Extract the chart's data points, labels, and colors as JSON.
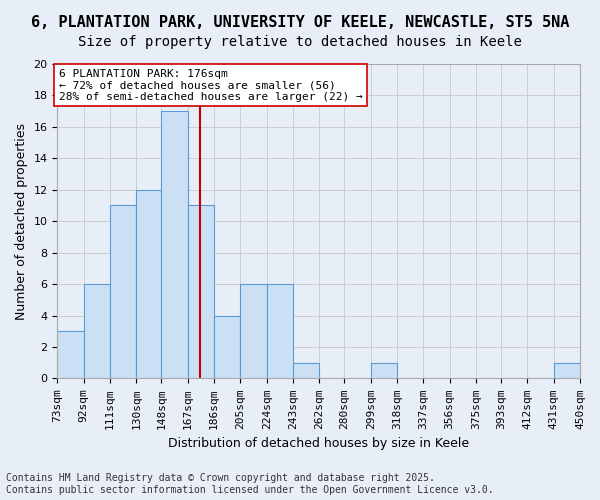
{
  "title_line1": "6, PLANTATION PARK, UNIVERSITY OF KEELE, NEWCASTLE, ST5 5NA",
  "title_line2": "Size of property relative to detached houses in Keele",
  "xlabel": "Distribution of detached houses by size in Keele",
  "ylabel": "Number of detached properties",
  "bin_labels": [
    "73sqm",
    "92sqm",
    "111sqm",
    "130sqm",
    "148sqm",
    "167sqm",
    "186sqm",
    "205sqm",
    "224sqm",
    "243sqm",
    "262sqm",
    "280sqm",
    "299sqm",
    "318sqm",
    "337sqm",
    "356sqm",
    "375sqm",
    "393sqm",
    "412sqm",
    "431sqm",
    "450sqm"
  ],
  "bin_edges": [
    73,
    92,
    111,
    130,
    148,
    167,
    186,
    205,
    224,
    243,
    262,
    280,
    299,
    318,
    337,
    356,
    375,
    393,
    412,
    431,
    450
  ],
  "counts": [
    3,
    6,
    11,
    12,
    17,
    11,
    4,
    6,
    6,
    1,
    0,
    0,
    1,
    0,
    0,
    0,
    0,
    0,
    0,
    1
  ],
  "bar_facecolor": "#cce0f5",
  "bar_edgecolor": "#5b9bd5",
  "ref_line_x": 176,
  "ref_line_color": "#cc0000",
  "annotation_line1": "6 PLANTATION PARK: 176sqm",
  "annotation_line2": "← 72% of detached houses are smaller (56)",
  "annotation_line3": "28% of semi-detached houses are larger (22) →",
  "annotation_box_edgecolor": "#cc0000",
  "annotation_box_facecolor": "#ffffff",
  "grid_color": "#cccccc",
  "background_color": "#e8eef8",
  "ylim": [
    0,
    20
  ],
  "yticks": [
    0,
    2,
    4,
    6,
    8,
    10,
    12,
    14,
    16,
    18,
    20
  ],
  "footer_line1": "Contains HM Land Registry data © Crown copyright and database right 2025.",
  "footer_line2": "Contains public sector information licensed under the Open Government Licence v3.0.",
  "title_fontsize": 11,
  "subtitle_fontsize": 10,
  "axis_label_fontsize": 9,
  "tick_fontsize": 8,
  "annotation_fontsize": 8,
  "footer_fontsize": 7
}
